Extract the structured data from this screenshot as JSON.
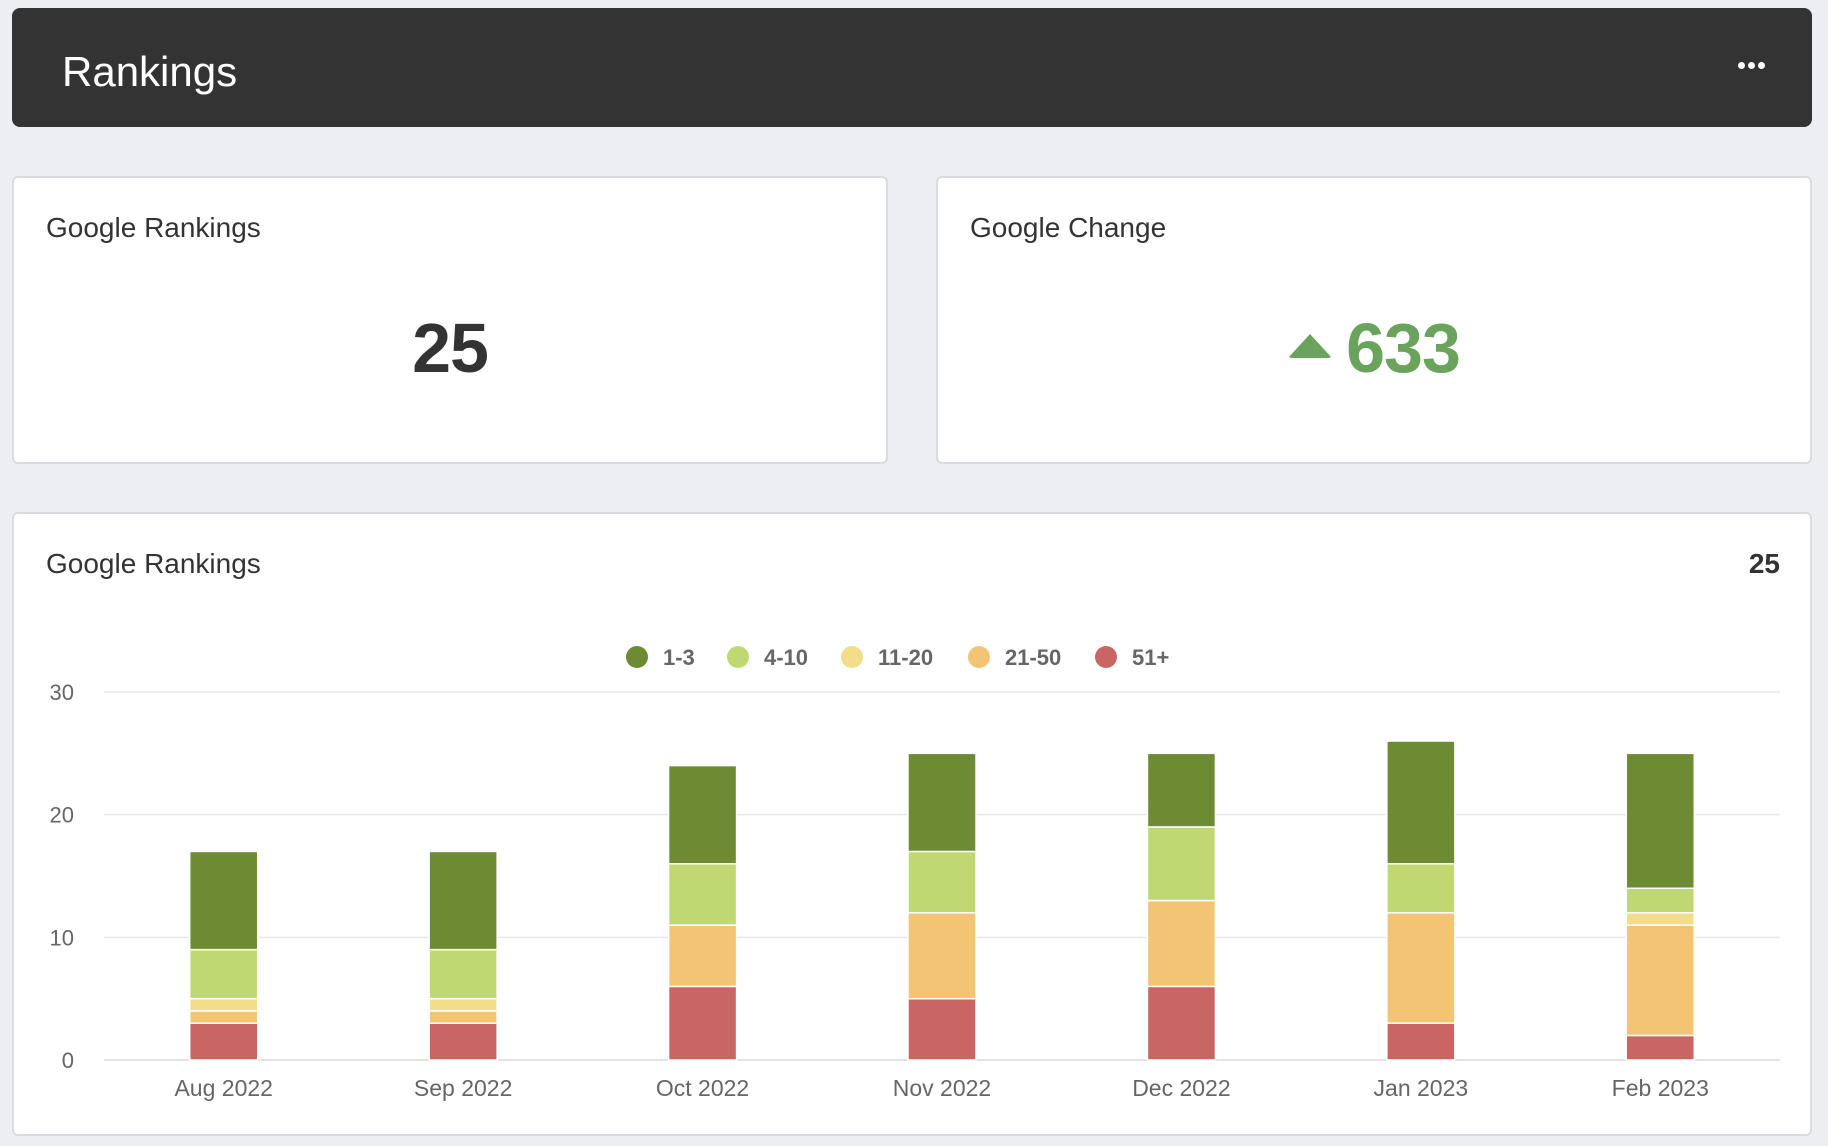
{
  "header": {
    "title": "Rankings"
  },
  "kpi_rankings": {
    "title": "Google Rankings",
    "value": "25"
  },
  "kpi_change": {
    "title": "Google Change",
    "value": "633"
  },
  "chart_card": {
    "title": "Google Rankings",
    "total": "25"
  },
  "chart_data": {
    "type": "bar",
    "stacked": true,
    "categories": [
      "Aug 2022",
      "Sep 2022",
      "Oct 2022",
      "Nov 2022",
      "Dec 2022",
      "Jan 2023",
      "Feb 2023"
    ],
    "series": [
      {
        "name": "51+",
        "color": "#c96562",
        "values": [
          3,
          3,
          6,
          5,
          6,
          3,
          2
        ]
      },
      {
        "name": "21-50",
        "color": "#f2c473",
        "values": [
          1,
          1,
          5,
          7,
          7,
          9,
          9
        ]
      },
      {
        "name": "11-20",
        "color": "#f3dd8b",
        "values": [
          1,
          1,
          0,
          0,
          0,
          0,
          1
        ]
      },
      {
        "name": "4-10",
        "color": "#bfd872",
        "values": [
          4,
          4,
          5,
          5,
          6,
          4,
          2
        ]
      },
      {
        "name": "1-3",
        "color": "#6c8b33",
        "values": [
          8,
          8,
          8,
          8,
          6,
          10,
          11
        ]
      }
    ],
    "legend_order": [
      "1-3",
      "4-10",
      "11-20",
      "21-50",
      "51+"
    ],
    "ylim": [
      0,
      30
    ],
    "yticks": [
      0,
      10,
      20,
      30
    ],
    "grid": true,
    "legend_position": "top-center"
  }
}
